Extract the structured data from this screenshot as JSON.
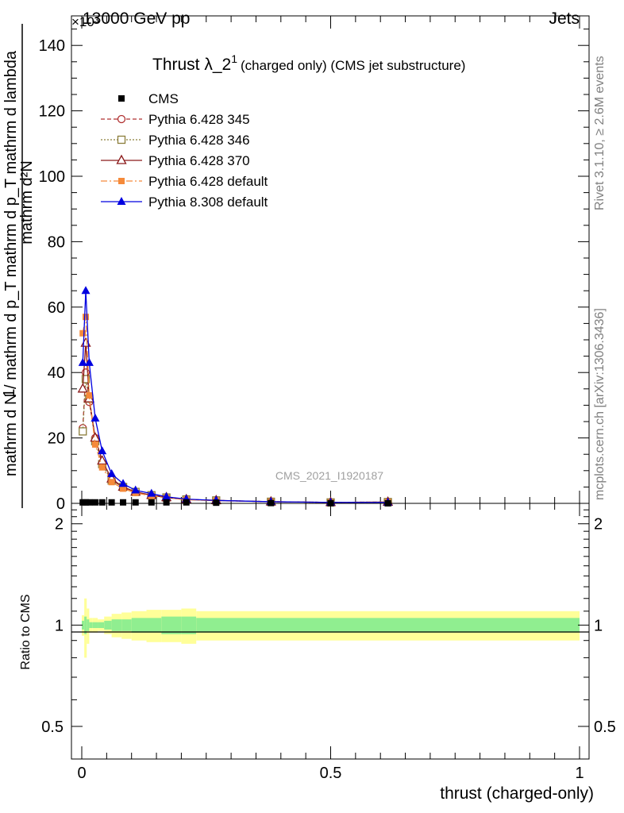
{
  "header": {
    "left": "13000 GeV pp",
    "right": "Jets",
    "exponent": "×10³"
  },
  "title": {
    "main": "Thrust λ_2",
    "sup": "1",
    "sub": "(charged only) (CMS jet substructure)"
  },
  "watermark": "CMS_2021_I1920187",
  "side_top": "Rivet 3.1.10, ≥ 2.6M events",
  "side_bottom": "mcplots.cern.ch [arXiv:1306.3436]",
  "ylabel_top": {
    "num": "mathrm d²N",
    "den": "mathrm d N / mathrm d p_T mathrm d p_T mathrm d lambda",
    "one": "1",
    "dbl": "mathrm d N / mathrm d p_T"
  },
  "ylabel_bottom": "Ratio to CMS",
  "xlabel": "thrust (charged-only)",
  "colors": {
    "cms": "#000000",
    "p345": "#b03030",
    "p346": "#8b7d3a",
    "p370": "#8b1a1a",
    "pdef": "#f58a3a",
    "p8": "#0000e0",
    "band_outer": "#ffff99",
    "band_inner": "#90ee90"
  },
  "chart_data": [
    {
      "type": "line",
      "xlim": [
        0,
        1
      ],
      "ylim": [
        0,
        147000
      ],
      "yticks": [
        0,
        20,
        40,
        60,
        80,
        100,
        120,
        140
      ],
      "ytick_scale": "×10³",
      "x": [
        0.002,
        0.008,
        0.015,
        0.027,
        0.041,
        0.06,
        0.083,
        0.108,
        0.14,
        0.17,
        0.21,
        0.27,
        0.38,
        0.5,
        0.615
      ],
      "series": [
        {
          "name": "CMS",
          "style": "square-filled",
          "values": [
            0.3,
            0.3,
            0.3,
            0.3,
            0.3,
            0.3,
            0.3,
            0.3,
            0.3,
            0.3,
            0.3,
            0.2,
            0.1,
            0.05,
            0.02
          ]
        },
        {
          "name": "Pythia 6.428 345",
          "style": "circle-open-dashed",
          "values": [
            23,
            40,
            31,
            20,
            12,
            7,
            5,
            3.5,
            2.5,
            1.8,
            1.2,
            0.9,
            0.5,
            0.3,
            0.4
          ]
        },
        {
          "name": "Pythia 6.428 346",
          "style": "square-open-dotted",
          "values": [
            22,
            38,
            32,
            19,
            12,
            7,
            5,
            3.5,
            2.5,
            1.8,
            1.2,
            0.9,
            0.5,
            0.3,
            0.4
          ]
        },
        {
          "name": "Pythia 6.428 370",
          "style": "triangle-open-solid",
          "values": [
            35,
            49,
            32,
            20,
            13,
            7.5,
            5,
            3.5,
            2.5,
            1.8,
            1.2,
            0.9,
            0.5,
            0.3,
            0.4
          ]
        },
        {
          "name": "Pythia 6.428 default",
          "style": "square-filled-dashdot",
          "values": [
            52,
            57,
            33,
            18,
            11,
            6.5,
            4.5,
            3.2,
            2.3,
            1.7,
            1.1,
            0.8,
            0.5,
            0.3,
            0.4
          ]
        },
        {
          "name": "Pythia 8.308 default",
          "style": "triangle-filled-solid",
          "values": [
            43,
            65,
            43,
            26,
            16,
            9,
            6,
            4,
            3,
            2,
            1.3,
            0.9,
            0.5,
            0.3,
            0.3
          ]
        }
      ]
    },
    {
      "type": "area",
      "xlim": [
        0,
        1
      ],
      "ylim": [
        0.4,
        2.3
      ],
      "yticks": [
        0.5,
        1,
        2
      ],
      "xticks": [
        0,
        0.5,
        1
      ],
      "xticklabels": [
        "0",
        "0.5",
        "1"
      ],
      "ratio_line": 1,
      "band_edges": [
        0,
        0.005,
        0.01,
        0.015,
        0.022,
        0.032,
        0.045,
        0.06,
        0.08,
        0.1,
        0.13,
        0.16,
        0.2,
        0.23,
        1
      ],
      "outer_band": [
        0.07,
        0.2,
        0.12,
        0.05,
        0.05,
        0.04,
        0.06,
        0.08,
        0.09,
        0.1,
        0.11,
        0.11,
        0.12,
        0.1
      ],
      "inner_band": [
        0.03,
        0.06,
        0.04,
        0.02,
        0.02,
        0.02,
        0.03,
        0.04,
        0.04,
        0.05,
        0.05,
        0.06,
        0.06,
        0.05
      ]
    }
  ]
}
